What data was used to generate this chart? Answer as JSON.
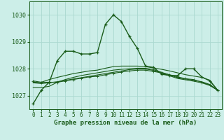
{
  "title": "Graphe pression niveau de la mer (hPa)",
  "bg_color": "#cceee8",
  "grid_color": "#aad8d0",
  "line_color": "#1a5c1a",
  "ylim": [
    1026.5,
    1030.5
  ],
  "yticks": [
    1027,
    1028,
    1029,
    1030
  ],
  "n_hours": 24,
  "series": [
    [
      1026.7,
      1027.2,
      1027.5,
      1028.3,
      1028.65,
      1028.65,
      1028.55,
      1028.55,
      1028.6,
      1029.65,
      1030.0,
      1029.75,
      1029.2,
      1028.75,
      1028.1,
      1028.05,
      1027.8,
      1027.75,
      1027.75,
      1028.0,
      1028.0,
      1027.7,
      1027.55,
      1027.2
    ],
    [
      1027.55,
      1027.5,
      1027.5,
      1027.5,
      1027.55,
      1027.6,
      1027.65,
      1027.7,
      1027.72,
      1027.78,
      1027.83,
      1027.88,
      1027.92,
      1027.95,
      1027.95,
      1027.9,
      1027.85,
      1027.78,
      1027.7,
      1027.63,
      1027.6,
      1027.5,
      1027.4,
      1027.2
    ],
    [
      1027.5,
      1027.5,
      1027.6,
      1027.68,
      1027.75,
      1027.82,
      1027.87,
      1027.92,
      1027.95,
      1028.02,
      1028.08,
      1028.1,
      1028.1,
      1028.1,
      1028.08,
      1028.03,
      1027.98,
      1027.92,
      1027.85,
      1027.78,
      1027.73,
      1027.68,
      1027.58,
      1027.2
    ],
    [
      1027.48,
      1027.45,
      1027.48,
      1027.52,
      1027.57,
      1027.62,
      1027.67,
      1027.72,
      1027.77,
      1027.82,
      1027.87,
      1027.92,
      1027.97,
      1027.99,
      1027.99,
      1027.94,
      1027.84,
      1027.74,
      1027.64,
      1027.59,
      1027.54,
      1027.48,
      1027.38,
      1027.2
    ],
    [
      1027.3,
      1027.3,
      1027.35,
      1027.5,
      1027.6,
      1027.68,
      1027.75,
      1027.8,
      1027.85,
      1027.9,
      1027.95,
      1027.98,
      1028.0,
      1028.02,
      1028.02,
      1027.97,
      1027.87,
      1027.77,
      1027.67,
      1027.62,
      1027.57,
      1027.52,
      1027.42,
      1027.2
    ]
  ],
  "marker_series": [
    0,
    1
  ],
  "lw_main": 1.0,
  "lw_sub": 0.8,
  "marker_size": 3.5,
  "title_fontsize": 6.5,
  "tick_fontsize": 5.5,
  "ytick_fontsize": 6.0
}
